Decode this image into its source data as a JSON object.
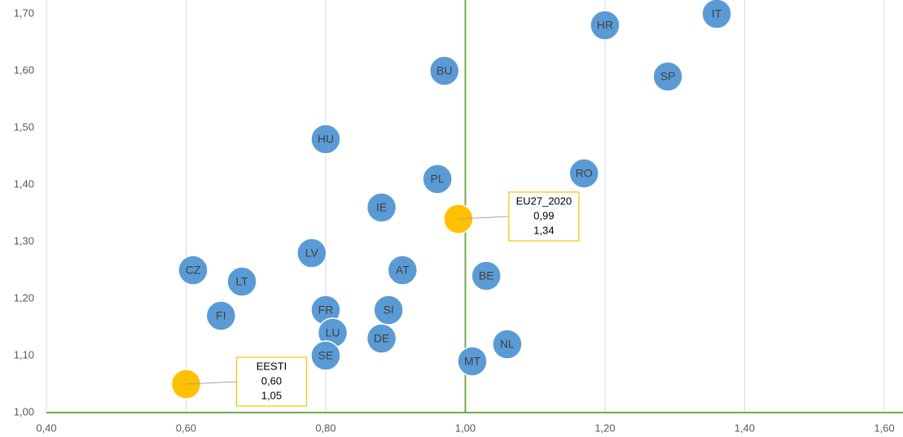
{
  "chart_data": {
    "type": "scatter",
    "labels": [
      "IT",
      "HR",
      "BU",
      "SP",
      "HU",
      "RO",
      "PL",
      "IE",
      "EU27_2020",
      "LV",
      "CZ",
      "AT",
      "BE",
      "LT",
      "FR",
      "SI",
      "FI",
      "LU",
      "DE",
      "NL",
      "SE",
      "MT",
      "EESTI"
    ],
    "x": [
      1.36,
      1.2,
      0.97,
      1.29,
      0.8,
      1.17,
      0.96,
      0.88,
      0.99,
      0.78,
      0.61,
      0.91,
      1.03,
      0.68,
      0.8,
      0.89,
      0.65,
      0.81,
      0.88,
      1.06,
      0.8,
      1.01,
      0.6
    ],
    "values": [
      1.7,
      1.68,
      1.6,
      1.59,
      1.48,
      1.42,
      1.41,
      1.36,
      1.34,
      1.28,
      1.25,
      1.25,
      1.24,
      1.23,
      1.18,
      1.18,
      1.17,
      1.14,
      1.13,
      1.12,
      1.1,
      1.09,
      1.05
    ],
    "x_labels": [
      null,
      null,
      null,
      null,
      null,
      null,
      null,
      null,
      "0,99",
      null,
      null,
      null,
      null,
      null,
      null,
      null,
      null,
      null,
      null,
      null,
      null,
      null,
      "0,60"
    ],
    "value_labels": [
      null,
      null,
      null,
      null,
      null,
      null,
      null,
      null,
      "1,34",
      null,
      null,
      null,
      null,
      null,
      null,
      null,
      null,
      null,
      null,
      null,
      null,
      null,
      "1,05"
    ],
    "colors": [
      "#5b9bd5",
      "#5b9bd5",
      "#5b9bd5",
      "#5b9bd5",
      "#5b9bd5",
      "#5b9bd5",
      "#5b9bd5",
      "#5b9bd5",
      "#ffc000",
      "#5b9bd5",
      "#5b9bd5",
      "#5b9bd5",
      "#5b9bd5",
      "#5b9bd5",
      "#5b9bd5",
      "#5b9bd5",
      "#5b9bd5",
      "#5b9bd5",
      "#5b9bd5",
      "#5b9bd5",
      "#5b9bd5",
      "#5b9bd5",
      "#ffc000"
    ],
    "xlim": [
      0.4,
      1.6
    ],
    "xticks": [
      {
        "value": 0.4,
        "label": "0,40"
      },
      {
        "value": 0.6,
        "label": "0,60"
      },
      {
        "value": 0.8,
        "label": "0,80"
      },
      {
        "value": 1.0,
        "label": "1,00"
      },
      {
        "value": 1.2,
        "label": "1,20"
      },
      {
        "value": 1.4,
        "label": "1,40"
      },
      {
        "value": 1.6,
        "label": "1,60"
      }
    ],
    "ylim": [
      1.0,
      1.7
    ],
    "yticks": [
      {
        "value": 1.0,
        "label": "1,00"
      },
      {
        "value": 1.1,
        "label": "1,10"
      },
      {
        "value": 1.2,
        "label": "1,20"
      },
      {
        "value": 1.3,
        "label": "1,30"
      },
      {
        "value": 1.4,
        "label": "1,40"
      },
      {
        "value": 1.5,
        "label": "1,50"
      },
      {
        "value": 1.6,
        "label": "1,60"
      },
      {
        "value": 1.7,
        "label": "1,70"
      }
    ],
    "x_reference": 1.0,
    "reference_color": "#70ad47",
    "grid": true
  }
}
